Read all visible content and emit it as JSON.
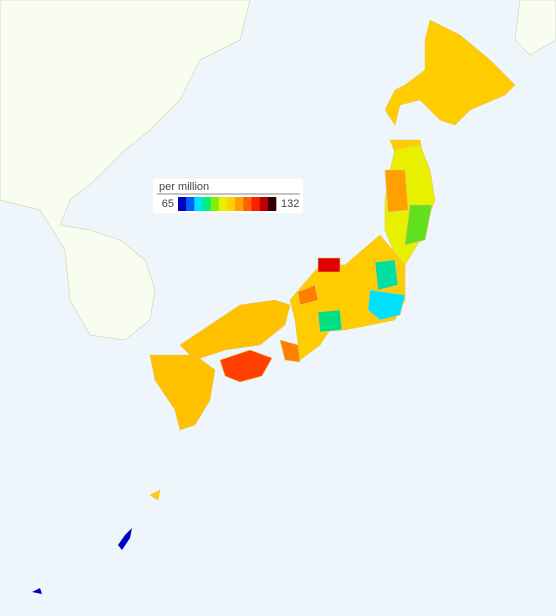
{
  "legend": {
    "title": "per million",
    "min": 65,
    "max": 132,
    "colors": [
      "#0000c0",
      "#0060ff",
      "#00e0ff",
      "#00f080",
      "#80f000",
      "#e8f000",
      "#ffd000",
      "#ffa000",
      "#ff6000",
      "#ff2000",
      "#c00000",
      "#300000"
    ]
  }
}
